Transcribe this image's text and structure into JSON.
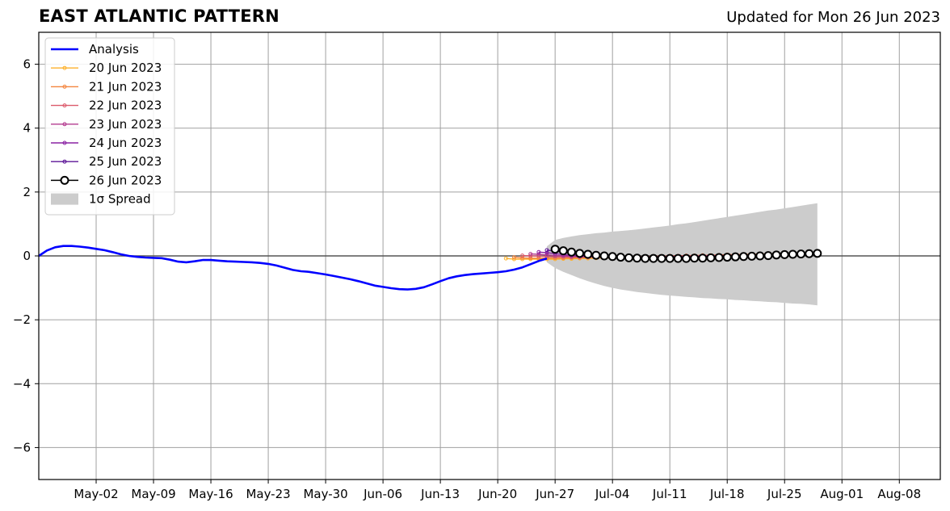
{
  "header": {
    "title": "EAST ATLANTIC PATTERN",
    "updated": "Updated for Mon 26 Jun 2023"
  },
  "colors": {
    "analysis": "#0000ff",
    "forecast_20": "#fdb12b",
    "forecast_21": "#f4853f",
    "forecast_22": "#dc5a6b",
    "forecast_23": "#b33b8f",
    "forecast_24": "#8a22a3",
    "forecast_25": "#5c1497",
    "forecast_26": "#000000",
    "spread": "#cccccc",
    "grid": "#a0a0a0",
    "zero_line": "#555555"
  },
  "chart_data": {
    "type": "line",
    "title": "EAST ATLANTIC PATTERN",
    "xlabel": "",
    "ylabel": "",
    "x_axis": {
      "type": "date",
      "range": [
        "2023-04-25",
        "2023-08-13"
      ],
      "ticks": [
        "2023-05-02",
        "2023-05-09",
        "2023-05-16",
        "2023-05-23",
        "2023-05-30",
        "2023-06-06",
        "2023-06-13",
        "2023-06-20",
        "2023-06-27",
        "2023-07-04",
        "2023-07-11",
        "2023-07-18",
        "2023-07-25",
        "2023-08-01",
        "2023-08-08"
      ],
      "tick_labels": [
        "May-02",
        "May-09",
        "May-16",
        "May-23",
        "May-30",
        "Jun-06",
        "Jun-13",
        "Jun-20",
        "Jun-27",
        "Jul-04",
        "Jul-11",
        "Jul-18",
        "Jul-25",
        "Aug-01",
        "Aug-08"
      ]
    },
    "y_axis": {
      "range": [
        -7,
        7
      ],
      "ticks": [
        -6,
        -4,
        -2,
        0,
        2,
        4,
        6
      ],
      "tick_labels": [
        "−6",
        "−4",
        "−2",
        "0",
        "2",
        "4",
        "6"
      ]
    },
    "grid": true,
    "legend_position": "top-left",
    "legend": [
      "Analysis",
      "20 Jun 2023",
      "21 Jun 2023",
      "22 Jun 2023",
      "23 Jun 2023",
      "24 Jun 2023",
      "25 Jun 2023",
      "26 Jun 2023",
      "1σ Spread"
    ],
    "series": [
      {
        "name": "Analysis",
        "x": [
          "2023-04-25",
          "2023-04-26",
          "2023-04-27",
          "2023-04-28",
          "2023-04-29",
          "2023-04-30",
          "2023-05-01",
          "2023-05-02",
          "2023-05-03",
          "2023-05-04",
          "2023-05-05",
          "2023-05-06",
          "2023-05-07",
          "2023-05-08",
          "2023-05-09",
          "2023-05-10",
          "2023-05-11",
          "2023-05-12",
          "2023-05-13",
          "2023-05-14",
          "2023-05-15",
          "2023-05-16",
          "2023-05-17",
          "2023-05-18",
          "2023-05-19",
          "2023-05-20",
          "2023-05-21",
          "2023-05-22",
          "2023-05-23",
          "2023-05-24",
          "2023-05-25",
          "2023-05-26",
          "2023-05-27",
          "2023-05-28",
          "2023-05-29",
          "2023-05-30",
          "2023-05-31",
          "2023-06-01",
          "2023-06-02",
          "2023-06-03",
          "2023-06-04",
          "2023-06-05",
          "2023-06-06",
          "2023-06-07",
          "2023-06-08",
          "2023-06-09",
          "2023-06-10",
          "2023-06-11",
          "2023-06-12",
          "2023-06-13",
          "2023-06-14",
          "2023-06-15",
          "2023-06-16",
          "2023-06-17",
          "2023-06-18",
          "2023-06-19",
          "2023-06-20",
          "2023-06-21",
          "2023-06-22",
          "2023-06-23",
          "2023-06-24",
          "2023-06-25",
          "2023-06-26"
        ],
        "y": [
          0.0,
          0.17,
          0.27,
          0.31,
          0.31,
          0.29,
          0.26,
          0.22,
          0.18,
          0.12,
          0.05,
          0.0,
          -0.03,
          -0.05,
          -0.06,
          -0.07,
          -0.12,
          -0.18,
          -0.2,
          -0.17,
          -0.13,
          -0.13,
          -0.15,
          -0.17,
          -0.18,
          -0.19,
          -0.2,
          -0.22,
          -0.25,
          -0.3,
          -0.37,
          -0.44,
          -0.48,
          -0.5,
          -0.54,
          -0.58,
          -0.63,
          -0.68,
          -0.73,
          -0.79,
          -0.86,
          -0.93,
          -0.97,
          -1.01,
          -1.04,
          -1.05,
          -1.03,
          -0.98,
          -0.89,
          -0.79,
          -0.7,
          -0.64,
          -0.6,
          -0.57,
          -0.55,
          -0.53,
          -0.51,
          -0.48,
          -0.43,
          -0.36,
          -0.26,
          -0.16,
          -0.08
        ]
      },
      {
        "name": "20 Jun 2023",
        "x_start": "2023-06-21",
        "y": [
          -0.08,
          -0.1,
          -0.1,
          -0.1,
          -0.1,
          -0.1,
          -0.1,
          -0.09,
          -0.09,
          -0.08,
          -0.08,
          -0.07,
          -0.06,
          -0.06,
          -0.05,
          -0.05,
          -0.04,
          -0.04,
          -0.03,
          -0.03,
          -0.02,
          -0.02,
          -0.01,
          -0.01,
          0.0,
          0.0,
          0.01,
          0.02,
          0.02,
          0.03,
          0.04,
          0.05,
          0.06
        ]
      },
      {
        "name": "21 Jun 2023",
        "x_start": "2023-06-22",
        "y": [
          -0.04,
          -0.06,
          -0.07,
          -0.07,
          -0.07,
          -0.07,
          -0.07,
          -0.06,
          -0.06,
          -0.05,
          -0.05,
          -0.04,
          -0.04,
          -0.03,
          -0.03,
          -0.02,
          -0.02,
          -0.01,
          -0.01,
          0.0,
          0.0,
          0.01,
          0.01,
          0.02,
          0.02,
          0.03,
          0.04,
          0.04,
          0.05,
          0.05,
          0.06,
          0.06,
          0.07
        ]
      },
      {
        "name": "22 Jun 2023",
        "x_start": "2023-06-23",
        "y": [
          0.01,
          0.0,
          -0.01,
          -0.02,
          -0.03,
          -0.03,
          -0.04,
          -0.04,
          -0.04,
          -0.04,
          -0.04,
          -0.03,
          -0.03,
          -0.03,
          -0.02,
          -0.02,
          -0.02,
          -0.01,
          -0.01,
          0.0,
          0.0,
          0.0,
          0.01,
          0.01,
          0.02,
          0.02,
          0.03,
          0.03,
          0.03,
          0.04,
          0.04,
          0.05,
          0.05
        ]
      },
      {
        "name": "23 Jun 2023",
        "x_start": "2023-06-24",
        "y": [
          0.06,
          0.05,
          0.03,
          0.01,
          0.0,
          -0.01,
          -0.02,
          -0.03,
          -0.03,
          -0.04,
          -0.04,
          -0.04,
          -0.04,
          -0.03,
          -0.03,
          -0.03,
          -0.02,
          -0.02,
          -0.02,
          -0.01,
          -0.01,
          0.0,
          0.0,
          0.0,
          0.01,
          0.01,
          0.02,
          0.02,
          0.02,
          0.03,
          0.03,
          0.04,
          0.04
        ]
      },
      {
        "name": "24 Jun 2023",
        "x_start": "2023-06-25",
        "y": [
          0.12,
          0.1,
          0.07,
          0.04,
          0.02,
          0.0,
          -0.01,
          -0.02,
          -0.03,
          -0.04,
          -0.05,
          -0.05,
          -0.05,
          -0.05,
          -0.05,
          -0.04,
          -0.04,
          -0.04,
          -0.03,
          -0.03,
          -0.02,
          -0.02,
          -0.01,
          -0.01,
          0.0,
          0.0,
          0.01,
          0.01,
          0.02,
          0.02,
          0.03,
          0.03,
          0.04
        ]
      },
      {
        "name": "25 Jun 2023",
        "x_start": "2023-06-26",
        "y": [
          0.18,
          0.15,
          0.11,
          0.08,
          0.05,
          0.03,
          0.01,
          0.0,
          -0.02,
          -0.03,
          -0.04,
          -0.05,
          -0.05,
          -0.06,
          -0.06,
          -0.06,
          -0.06,
          -0.05,
          -0.05,
          -0.05,
          -0.04,
          -0.04,
          -0.03,
          -0.03,
          -0.02,
          -0.02,
          -0.01,
          0.0,
          0.0,
          0.01,
          0.02,
          0.02,
          0.03
        ]
      },
      {
        "name": "26 Jun 2023",
        "x_start": "2023-06-27",
        "y": [
          0.21,
          0.16,
          0.12,
          0.08,
          0.05,
          0.02,
          0.0,
          -0.02,
          -0.04,
          -0.06,
          -0.07,
          -0.08,
          -0.08,
          -0.08,
          -0.08,
          -0.08,
          -0.08,
          -0.07,
          -0.07,
          -0.06,
          -0.05,
          -0.04,
          -0.03,
          -0.02,
          -0.01,
          0.0,
          0.01,
          0.03,
          0.04,
          0.05,
          0.06,
          0.07,
          0.08
        ]
      }
    ],
    "spread": {
      "name": "1σ Spread",
      "x_start": "2023-06-26",
      "upper": [
        0.3,
        0.5,
        0.56,
        0.61,
        0.65,
        0.68,
        0.71,
        0.73,
        0.76,
        0.78,
        0.8,
        0.83,
        0.86,
        0.89,
        0.92,
        0.95,
        0.99,
        1.02,
        1.06,
        1.1,
        1.14,
        1.18,
        1.22,
        1.26,
        1.3,
        1.34,
        1.38,
        1.42,
        1.45,
        1.49,
        1.53,
        1.57,
        1.61,
        1.65
      ],
      "lower": [
        -0.2,
        -0.38,
        -0.5,
        -0.6,
        -0.7,
        -0.79,
        -0.87,
        -0.94,
        -1.0,
        -1.05,
        -1.09,
        -1.13,
        -1.16,
        -1.19,
        -1.22,
        -1.24,
        -1.26,
        -1.28,
        -1.3,
        -1.32,
        -1.33,
        -1.35,
        -1.36,
        -1.38,
        -1.39,
        -1.41,
        -1.42,
        -1.44,
        -1.45,
        -1.47,
        -1.49,
        -1.5,
        -1.52,
        -1.55
      ]
    }
  }
}
